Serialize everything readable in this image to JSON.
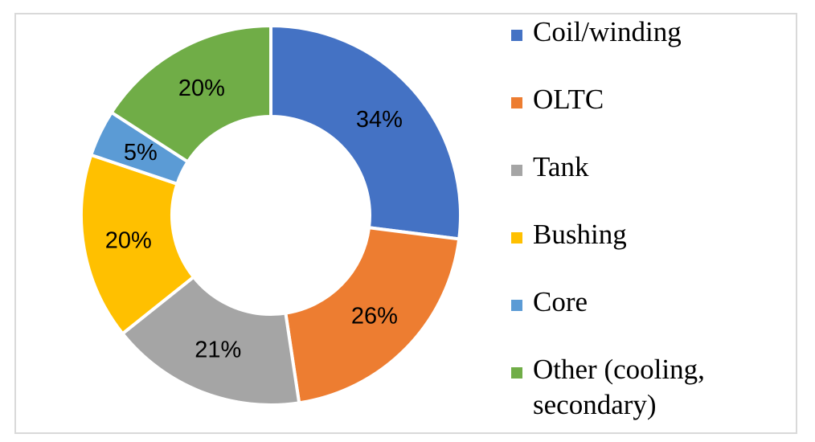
{
  "chart_data": {
    "type": "pie",
    "donut": true,
    "categories": [
      "Coil/winding",
      "OLTC",
      "Tank",
      "Bushing",
      "Core",
      "Other (cooling, secondary)"
    ],
    "values": [
      34,
      26,
      21,
      20,
      5,
      20
    ],
    "labels": [
      "34%",
      "26%",
      "21%",
      "20%",
      "5%",
      "20%"
    ],
    "colors": [
      "#4472c4",
      "#ed7d31",
      "#a5a5a5",
      "#ffc000",
      "#5b9bd5",
      "#70ad47"
    ],
    "legend_position": "right",
    "title": ""
  }
}
